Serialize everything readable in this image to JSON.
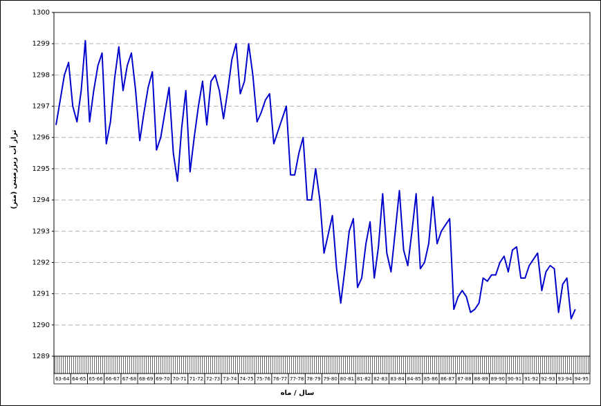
{
  "chart_data": {
    "type": "line",
    "y_label": "تراز آب زیرزمینی (متر)",
    "x_label": "سال / ماه",
    "categories": [
      "63-64",
      null,
      null,
      null,
      "64-65",
      null,
      null,
      null,
      "65-66",
      null,
      null,
      null,
      "66-67",
      null,
      null,
      null,
      "67-68",
      null,
      null,
      null,
      "68-69",
      null,
      null,
      null,
      "69-70",
      null,
      null,
      null,
      "70-71",
      null,
      null,
      null,
      "71-72",
      null,
      null,
      null,
      "72-73",
      null,
      null,
      null,
      "73-74",
      null,
      null,
      null,
      "74-75",
      null,
      null,
      null,
      "75-76",
      null,
      null,
      null,
      "76-77",
      null,
      null,
      null,
      "77-78",
      null,
      null,
      null,
      "78-79",
      null,
      null,
      null,
      "79-80",
      null,
      null,
      null,
      "80-81",
      null,
      null,
      null,
      "81-82",
      null,
      null,
      null,
      "82-83",
      null,
      null,
      null,
      "83-84",
      null,
      null,
      null,
      "84-85",
      null,
      null,
      null,
      "85-86",
      null,
      null,
      null,
      "86-87",
      null,
      null,
      null,
      "87-88",
      null,
      null,
      null,
      "88-89",
      null,
      null,
      null,
      "89-90",
      null,
      null,
      null,
      "90-91",
      null,
      null,
      null,
      "91-92",
      null,
      null,
      null,
      "92-93",
      null,
      null,
      null,
      "93-94",
      null,
      null,
      null,
      "94-95",
      null,
      null,
      null
    ],
    "series": [
      {
        "color": "#0000cc",
        "values": [
          1296.4,
          1297.2,
          1298.0,
          1298.4,
          1297.0,
          1296.5,
          1297.5,
          1299.1,
          1296.5,
          1297.5,
          1298.3,
          1298.7,
          1295.8,
          1296.5,
          1297.9,
          1298.9,
          1297.5,
          1298.3,
          1298.7,
          1297.5,
          1295.9,
          1296.8,
          1297.6,
          1298.1,
          1295.6,
          1296.0,
          1296.8,
          1297.6,
          1295.5,
          1294.6,
          1296.3,
          1297.5,
          1294.9,
          1296.0,
          1297.0,
          1297.8,
          1296.4,
          1297.8,
          1298.0,
          1297.5,
          1296.6,
          1297.5,
          1298.5,
          1299.0,
          1297.4,
          1297.8,
          1299.0,
          1298.0,
          1296.5,
          1296.8,
          1297.2,
          1297.4,
          1295.8,
          1296.2,
          1296.6,
          1297.0,
          1294.8,
          1294.8,
          1295.5,
          1296.0,
          1294.0,
          1294.0,
          1295.0,
          1294.0,
          1292.3,
          1292.9,
          1293.5,
          1291.8,
          1290.7,
          1291.8,
          1293.0,
          1293.4,
          1291.2,
          1291.5,
          1292.6,
          1293.3,
          1291.5,
          1292.5,
          1294.2,
          1292.3,
          1291.7,
          1293.0,
          1294.3,
          1292.4,
          1291.9,
          1293.0,
          1294.2,
          1291.8,
          1292.0,
          1292.6,
          1294.1,
          1292.6,
          1293.0,
          1293.2,
          1293.4,
          1290.5,
          1290.9,
          1291.1,
          1290.9,
          1290.4,
          1290.5,
          1290.7,
          1291.5,
          1291.4,
          1291.6,
          1291.6,
          1292.0,
          1292.2,
          1291.7,
          1292.4,
          1292.5,
          1291.5,
          1291.5,
          1291.9,
          1292.1,
          1292.3,
          1291.1,
          1291.7,
          1291.9,
          1291.8,
          1290.4,
          1291.3,
          1291.5,
          1290.2,
          1290.5,
          null,
          null,
          null
        ]
      }
    ],
    "ylim": [
      1289,
      1300
    ],
    "yticks": [
      1289,
      1290,
      1291,
      1292,
      1293,
      1294,
      1295,
      1296,
      1297,
      1298,
      1299,
      1300
    ],
    "grid": true
  }
}
